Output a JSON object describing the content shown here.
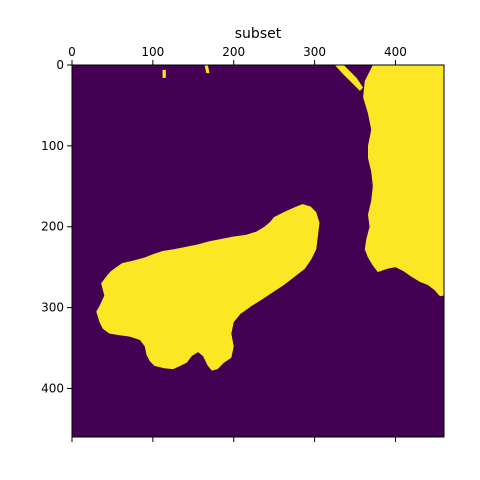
{
  "chart_data": {
    "type": "heatmap",
    "title": "subset",
    "xlabel": "",
    "ylabel": "",
    "x_ticks": [
      0,
      100,
      200,
      300,
      400
    ],
    "y_ticks": [
      0,
      100,
      200,
      300,
      400
    ],
    "xlim": [
      0,
      460
    ],
    "ylim": [
      460,
      0
    ],
    "x_axis_position": "top",
    "colormap": "viridis",
    "values": [
      0,
      1
    ],
    "colors": {
      "0": "#440154",
      "1": "#fde725"
    },
    "regions": [
      {
        "value": 1,
        "label": "central blob",
        "outline": [
          [
            34,
            318
          ],
          [
            30,
            305
          ],
          [
            34,
            298
          ],
          [
            40,
            285
          ],
          [
            36,
            270
          ],
          [
            42,
            262
          ],
          [
            48,
            255
          ],
          [
            55,
            250
          ],
          [
            62,
            245
          ],
          [
            75,
            242
          ],
          [
            90,
            238
          ],
          [
            100,
            234
          ],
          [
            112,
            230
          ],
          [
            125,
            228
          ],
          [
            140,
            225
          ],
          [
            155,
            222
          ],
          [
            170,
            218
          ],
          [
            185,
            215
          ],
          [
            200,
            212
          ],
          [
            215,
            210
          ],
          [
            228,
            206
          ],
          [
            238,
            200
          ],
          [
            245,
            194
          ],
          [
            250,
            188
          ],
          [
            262,
            182
          ],
          [
            275,
            176
          ],
          [
            285,
            172
          ],
          [
            295,
            175
          ],
          [
            302,
            182
          ],
          [
            306,
            195
          ],
          [
            304,
            212
          ],
          [
            302,
            228
          ],
          [
            296,
            240
          ],
          [
            288,
            252
          ],
          [
            275,
            262
          ],
          [
            262,
            272
          ],
          [
            250,
            280
          ],
          [
            238,
            288
          ],
          [
            222,
            298
          ],
          [
            208,
            308
          ],
          [
            200,
            318
          ],
          [
            197,
            332
          ],
          [
            200,
            348
          ],
          [
            197,
            362
          ],
          [
            188,
            368
          ],
          [
            180,
            376
          ],
          [
            173,
            378
          ],
          [
            168,
            372
          ],
          [
            162,
            360
          ],
          [
            156,
            355
          ],
          [
            148,
            360
          ],
          [
            142,
            368
          ],
          [
            134,
            372
          ],
          [
            125,
            376
          ],
          [
            114,
            375
          ],
          [
            102,
            372
          ],
          [
            96,
            366
          ],
          [
            92,
            358
          ],
          [
            90,
            348
          ],
          [
            84,
            340
          ],
          [
            72,
            336
          ],
          [
            58,
            334
          ],
          [
            46,
            332
          ],
          [
            38,
            326
          ]
        ]
      },
      {
        "value": 1,
        "label": "right landmass",
        "outline": [
          [
            372,
            0
          ],
          [
            460,
            0
          ],
          [
            460,
            285
          ],
          [
            455,
            286
          ],
          [
            448,
            278
          ],
          [
            440,
            272
          ],
          [
            430,
            268
          ],
          [
            420,
            262
          ],
          [
            410,
            255
          ],
          [
            400,
            250
          ],
          [
            390,
            252
          ],
          [
            378,
            256
          ],
          [
            372,
            248
          ],
          [
            366,
            238
          ],
          [
            362,
            228
          ],
          [
            364,
            215
          ],
          [
            368,
            200
          ],
          [
            366,
            185
          ],
          [
            370,
            168
          ],
          [
            372,
            150
          ],
          [
            370,
            132
          ],
          [
            366,
            115
          ],
          [
            366,
            100
          ],
          [
            370,
            80
          ],
          [
            366,
            60
          ],
          [
            360,
            40
          ],
          [
            362,
            20
          ]
        ]
      },
      {
        "value": 1,
        "label": "upper right specks",
        "outline": [
          [
            325,
            0
          ],
          [
            336,
            0
          ],
          [
            352,
            16
          ],
          [
            360,
            28
          ],
          [
            356,
            32
          ],
          [
            346,
            22
          ],
          [
            334,
            10
          ]
        ]
      },
      {
        "value": 1,
        "label": "top specks",
        "outline": [
          [
            112,
            6
          ],
          [
            116,
            6
          ],
          [
            116,
            16
          ],
          [
            112,
            16
          ]
        ]
      },
      {
        "value": 1,
        "label": "top specks 2",
        "outline": [
          [
            164,
            0
          ],
          [
            168,
            0
          ],
          [
            170,
            10
          ],
          [
            166,
            10
          ]
        ]
      }
    ]
  }
}
